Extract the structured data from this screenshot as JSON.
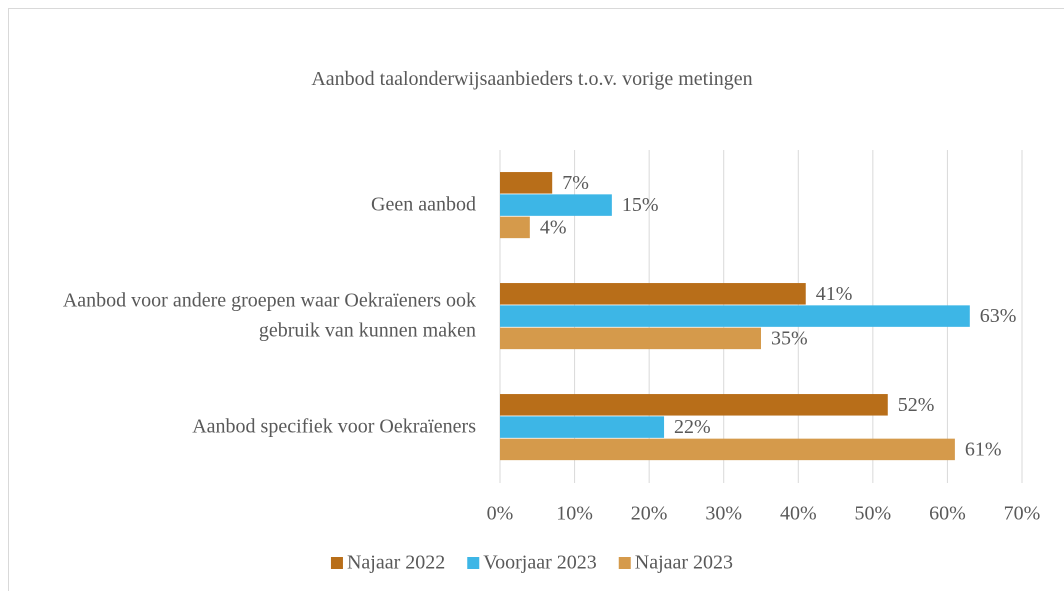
{
  "chart_data": {
    "type": "hbar",
    "title": "Aanbod taalonderwijsaanbieders t.o.v. vorige metingen",
    "categories": [
      "Geen aanbod",
      "Aanbod voor andere groepen waar Oekraïeners ook gebruik van kunnen maken",
      "Aanbod specifiek voor Oekraïeners"
    ],
    "series": [
      {
        "name": "Najaar 2022",
        "color": "#b86e19",
        "values": [
          7,
          41,
          52
        ],
        "value_labels": [
          "7%",
          "41%",
          "52%"
        ]
      },
      {
        "name": "Voorjaar 2023",
        "color": "#3db6e6",
        "values": [
          15,
          63,
          22
        ],
        "value_labels": [
          "15%",
          "63%",
          "22%"
        ]
      },
      {
        "name": "Najaar 2023",
        "color": "#d59a4b",
        "values": [
          4,
          35,
          61
        ],
        "value_labels": [
          "4%",
          "35%",
          "61%"
        ]
      }
    ],
    "xlim": [
      0,
      70
    ],
    "xticks": [
      {
        "value": 0,
        "label": "0%"
      },
      {
        "value": 10,
        "label": "10%"
      },
      {
        "value": 20,
        "label": "20%"
      },
      {
        "value": 30,
        "label": "30%"
      },
      {
        "value": 40,
        "label": "40%"
      },
      {
        "value": 50,
        "label": "50%"
      },
      {
        "value": 60,
        "label": "60%"
      },
      {
        "value": 70,
        "label": "70%"
      }
    ],
    "grid": true,
    "legend": "bottom"
  }
}
